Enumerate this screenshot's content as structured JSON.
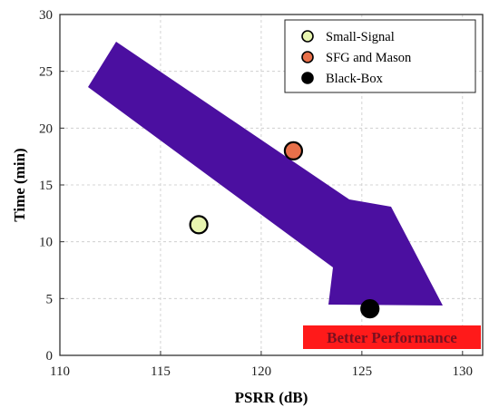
{
  "chart_data": {
    "type": "scatter",
    "title": "",
    "xlabel": "PSRR (dB)",
    "ylabel": "Time (min)",
    "xlim": [
      110,
      131
    ],
    "ylim": [
      0,
      30
    ],
    "xticks": [
      110,
      115,
      120,
      125,
      130
    ],
    "yticks": [
      0,
      5,
      10,
      15,
      20,
      25,
      30
    ],
    "grid": true,
    "legend_position": "top-right",
    "series": [
      {
        "name": "Small-Signal",
        "x": [
          116.9
        ],
        "y": [
          11.5
        ],
        "color": "#e8f5b0"
      },
      {
        "name": "SFG and Mason",
        "x": [
          121.6
        ],
        "y": [
          18.0
        ],
        "color": "#e8704a"
      },
      {
        "name": "Black-Box",
        "x": [
          125.4
        ],
        "y": [
          4.1
        ],
        "color": "#000000"
      }
    ],
    "annotations": [
      {
        "text": "Better Performance",
        "type": "arrow-callout",
        "arrow_color": "#4b0fa0",
        "label_bg": "#ff1a1a"
      }
    ]
  }
}
